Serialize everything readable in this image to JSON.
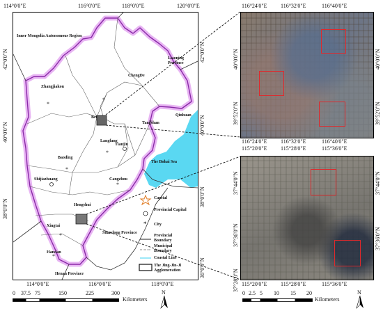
{
  "main_map": {
    "top_lon_ticks": [
      "114°0'0\"E",
      "116°0'0\"E",
      "118°0'0\"E",
      "120°0'0\"E"
    ],
    "bottom_lon_ticks": [
      "114°0'0\"E",
      "116°0'0\"E",
      "118°0'0\"E"
    ],
    "left_lat_ticks": [
      "42°0'0\"N",
      "40°0'0\"N",
      "38°0'0\"N"
    ],
    "right_lat_ticks": [
      "42°0'0\"N",
      "40°0'0\"N",
      "38°0'0\"N",
      "36°0'0\"N"
    ],
    "place_labels": {
      "inner_mongolia": "Inner Mongolia Autonomous Region",
      "liaoning": "Liaoning Province",
      "chengde": "ChengDe",
      "zhangjiakou": "Zhangjiakou",
      "qinhuang": "Qinhuan",
      "beijing": "Bei",
      "tangshan": "Tangshan",
      "langfang": "Langfang",
      "tianjin": "Tianjin",
      "baoding": "Baoding",
      "bohai": "The Bohai Sea",
      "shijiazhuang": "Shijiazhuang",
      "cangzhou": "Cangzhou",
      "hengshui": "Hengshui",
      "xingtai": "Xingtai",
      "shandong": "Shandong Province",
      "handan": "Handan",
      "henan": "Henan Province"
    },
    "legend": {
      "capital": "Capital",
      "provincial_capital": "Provincial Capital",
      "city": "City",
      "provincial_boundary": "Provincial Boundary",
      "municipal_boundary": "Municipal Boundary",
      "coastal_line": "Coastal Line",
      "agglomeration": "The Jing-Jin-Ji Agglomeration"
    },
    "scale": {
      "ticks": [
        "0",
        "37.5",
        "75",
        "150",
        "225",
        "300"
      ],
      "unit": "Kilometers"
    },
    "north": "N"
  },
  "panel_beijing": {
    "top_lon_ticks": [
      "116°24'0\"E",
      "116°32'0\"E",
      "116°40'0\"E"
    ],
    "bottom_lon_ticks": [
      "116°24'0\"E",
      "116°32'0\"E",
      "116°40'0\"E"
    ],
    "left_lat_ticks": [
      "40°0'0\"N",
      "39°52'0\"N"
    ],
    "right_lat_ticks": [
      "40°0'0\"N",
      "39°52'0\"N"
    ]
  },
  "panel_hengshui": {
    "top_lon_ticks": [
      "115°20'0\"E",
      "115°28'0\"E",
      "115°36'0\"E"
    ],
    "bottom_lon_ticks": [
      "115°20'0\"E",
      "115°28'0\"E",
      "115°36'0\"E"
    ],
    "left_lat_ticks": [
      "37°44'0\"N",
      "37°36'0\"N",
      "37°28'0\"N"
    ],
    "right_lat_ticks": [
      "37°44'0\"N",
      "37°36'0\"N"
    ],
    "scale": {
      "ticks": [
        "0",
        "2.5",
        "5",
        "10",
        "15",
        "20"
      ],
      "unit": "Kilometers"
    },
    "north": "N"
  },
  "colors": {
    "sea": "#5ad8f2",
    "agglomeration_glow": "#e8b5f3",
    "agglomeration_border": "#8a2aa8",
    "roi": "#e0282b"
  }
}
